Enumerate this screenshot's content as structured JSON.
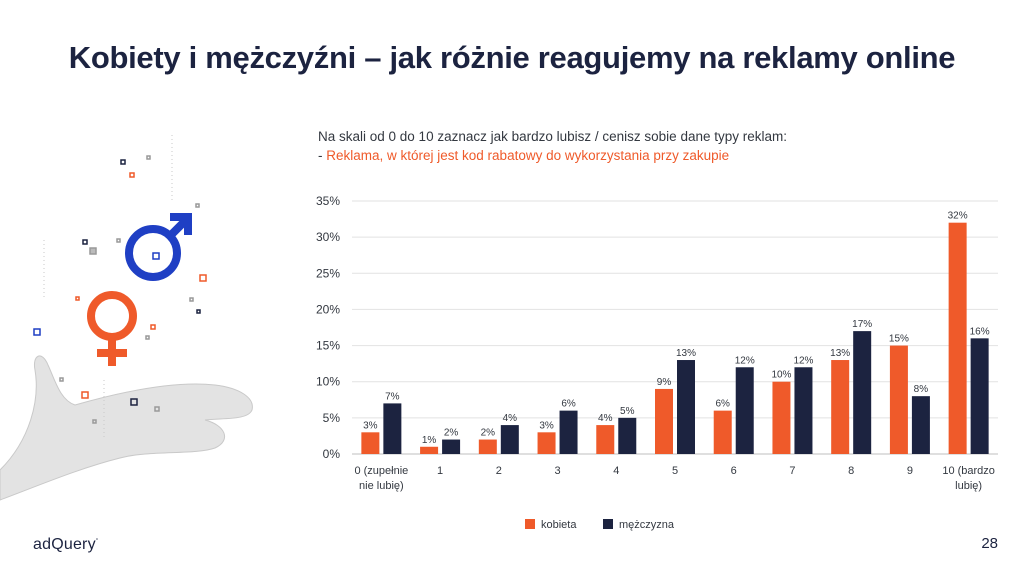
{
  "slide": {
    "title": "Kobiety i mężczyźni – jak różnie reagujemy na reklamy online",
    "question_line1": "Na skali od 0 do 10 zaznacz jak bardzo lubisz / cenisz sobie dane typy reklam:",
    "question_prefix": "- ",
    "question_line2": "Reklama, w której jest kod rabatowy do wykorzystania przy zakupie",
    "logo": "adQuery",
    "logo_mark": "°",
    "page_number": "28"
  },
  "colors": {
    "kobieta": "#ef5a2a",
    "mezczyzna": "#1c2340",
    "male_symbol": "#1f3fc4",
    "female_symbol": "#ef5a2a",
    "title": "#1c2340"
  },
  "chart_data": {
    "type": "bar",
    "categories": [
      "0 (zupełnie\nnie lubię)",
      "1",
      "2",
      "3",
      "4",
      "5",
      "6",
      "7",
      "8",
      "9",
      "10 (bardzo\nlubię)"
    ],
    "series": [
      {
        "name": "kobieta",
        "values": [
          3,
          1,
          2,
          3,
          4,
          9,
          6,
          10,
          13,
          15,
          32
        ],
        "color": "#ef5a2a"
      },
      {
        "name": "mężczyzna",
        "values": [
          7,
          2,
          4,
          6,
          5,
          13,
          12,
          12,
          17,
          8,
          16
        ],
        "color": "#1c2340"
      }
    ],
    "y_ticks": [
      "0%",
      "5%",
      "10%",
      "15%",
      "20%",
      "25%",
      "30%",
      "35%"
    ],
    "ylim": [
      0,
      35
    ],
    "unit": "%",
    "grid": true,
    "legend_position": "bottom"
  }
}
